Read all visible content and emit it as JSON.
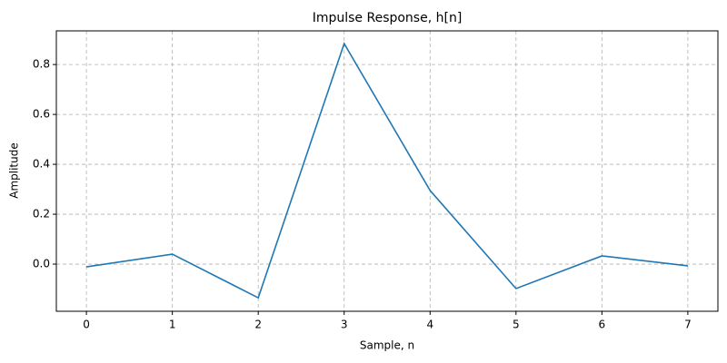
{
  "chart_data": {
    "type": "line",
    "title": "Impulse Response, h[n]",
    "xlabel": "Sample, n",
    "ylabel": "Amplitude",
    "x": [
      0,
      1,
      2,
      3,
      4,
      5,
      6,
      7
    ],
    "series": [
      {
        "name": "h[n]",
        "color": "#1f77b4",
        "values": [
          -0.011,
          0.04,
          -0.135,
          0.884,
          0.295,
          -0.098,
          0.033,
          -0.007
        ]
      }
    ],
    "xlim": [
      -0.35,
      7.35
    ],
    "ylim": [
      -0.189,
      0.935
    ],
    "xticks": [
      0,
      1,
      2,
      3,
      4,
      5,
      6,
      7
    ],
    "yticks": [
      {
        "value": 0,
        "label": "0.0"
      },
      0.2,
      0.4,
      0.6,
      0.8
    ],
    "grid": true
  }
}
